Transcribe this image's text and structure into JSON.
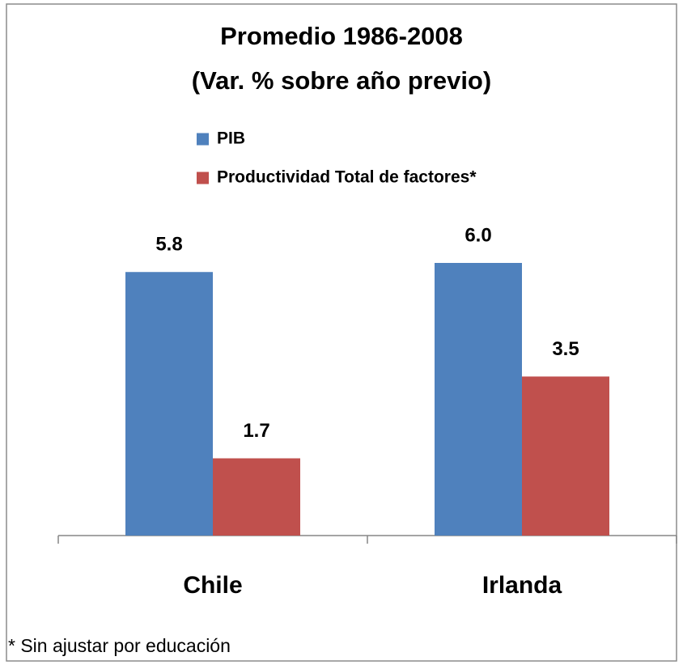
{
  "chart_data": {
    "type": "bar",
    "title": "Promedio 1986-2008",
    "subtitle": "(Var. % sobre año previo)",
    "note": "* Sin ajustar por educación",
    "categories": [
      "Chile",
      "Irlanda"
    ],
    "series": [
      {
        "name": "PIB",
        "color": "#4f81bd",
        "values": [
          5.8,
          6.0
        ],
        "value_labels": [
          "5.8",
          "6.0"
        ]
      },
      {
        "name": "Productividad Total de factores*",
        "color": "#c0504d",
        "values": [
          1.7,
          3.5
        ],
        "value_labels": [
          "1.7",
          "3.5"
        ]
      }
    ],
    "ylim": [
      0,
      6
    ]
  }
}
